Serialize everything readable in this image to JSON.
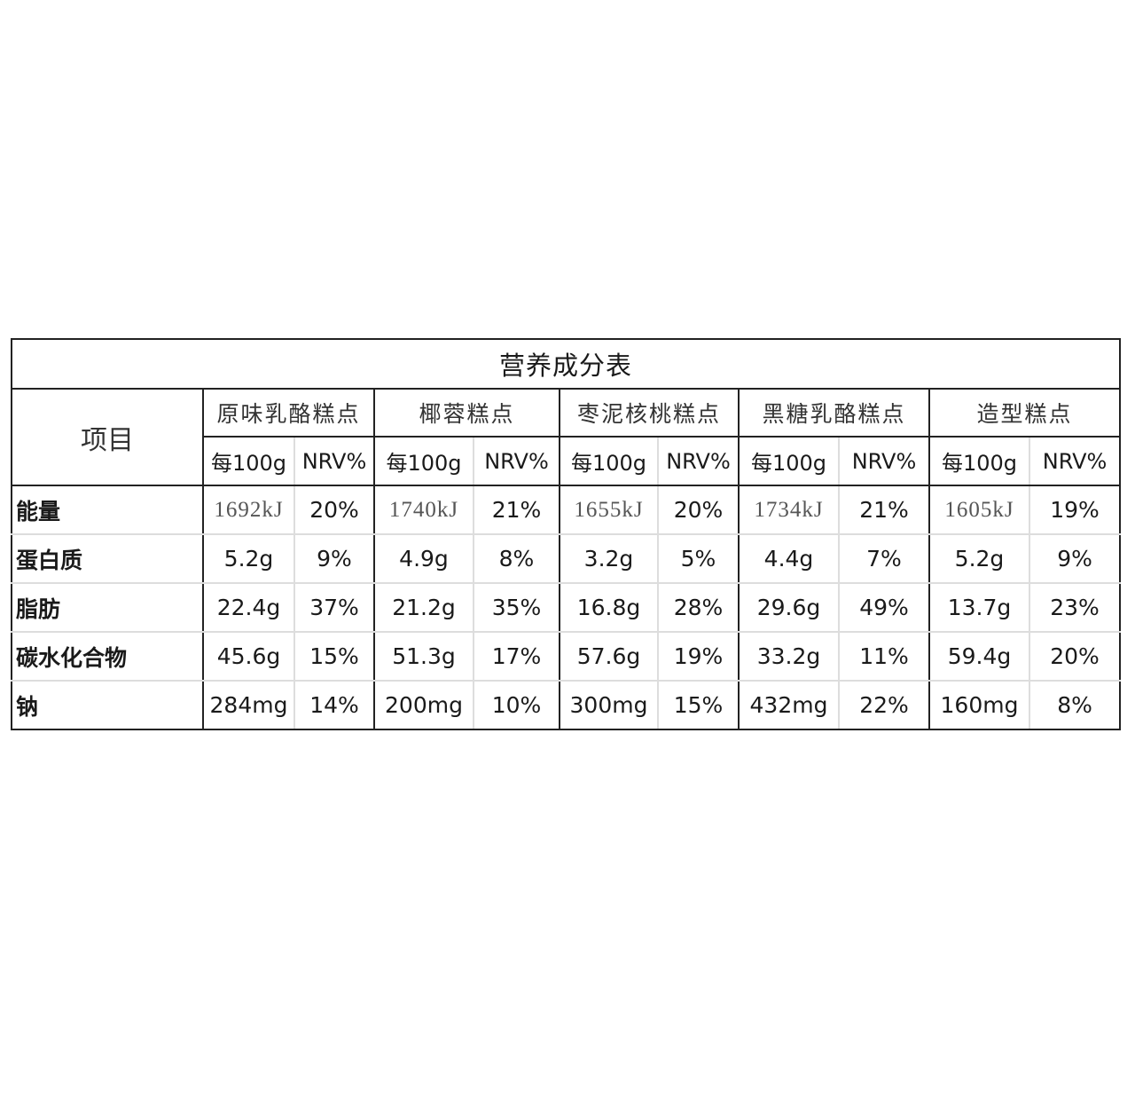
{
  "title": "营养成分表",
  "item_header": "项目",
  "per100_label": "每100g",
  "nrv_label": "NRV%",
  "products": [
    "原味乳酪糕点",
    "椰蓉糕点",
    "枣泥核桃糕点",
    "黑糖乳酪糕点",
    "造型糕点"
  ],
  "rows": [
    {
      "label": "能量",
      "values": [
        [
          "1692kJ",
          "20%"
        ],
        [
          "1740kJ",
          "21%"
        ],
        [
          "1655kJ",
          "20%"
        ],
        [
          "1734kJ",
          "21%"
        ],
        [
          "1605kJ",
          "19%"
        ]
      ]
    },
    {
      "label": "蛋白质",
      "values": [
        [
          "5.2g",
          "9%"
        ],
        [
          "4.9g",
          "8%"
        ],
        [
          "3.2g",
          "5%"
        ],
        [
          "4.4g",
          "7%"
        ],
        [
          "5.2g",
          "9%"
        ]
      ]
    },
    {
      "label": "脂肪",
      "values": [
        [
          "22.4g",
          "37%"
        ],
        [
          "21.2g",
          "35%"
        ],
        [
          "16.8g",
          "28%"
        ],
        [
          "29.6g",
          "49%"
        ],
        [
          "13.7g",
          "23%"
        ]
      ]
    },
    {
      "label": "碳水化合物",
      "values": [
        [
          "45.6g",
          "15%"
        ],
        [
          "51.3g",
          "17%"
        ],
        [
          "57.6g",
          "19%"
        ],
        [
          "33.2g",
          "11%"
        ],
        [
          "59.4g",
          "20%"
        ]
      ]
    },
    {
      "label": "钠",
      "values": [
        [
          "284mg",
          "14%"
        ],
        [
          "200mg",
          "10%"
        ],
        [
          "300mg",
          "15%"
        ],
        [
          "432mg",
          "22%"
        ],
        [
          "160mg",
          "8%"
        ]
      ]
    }
  ]
}
